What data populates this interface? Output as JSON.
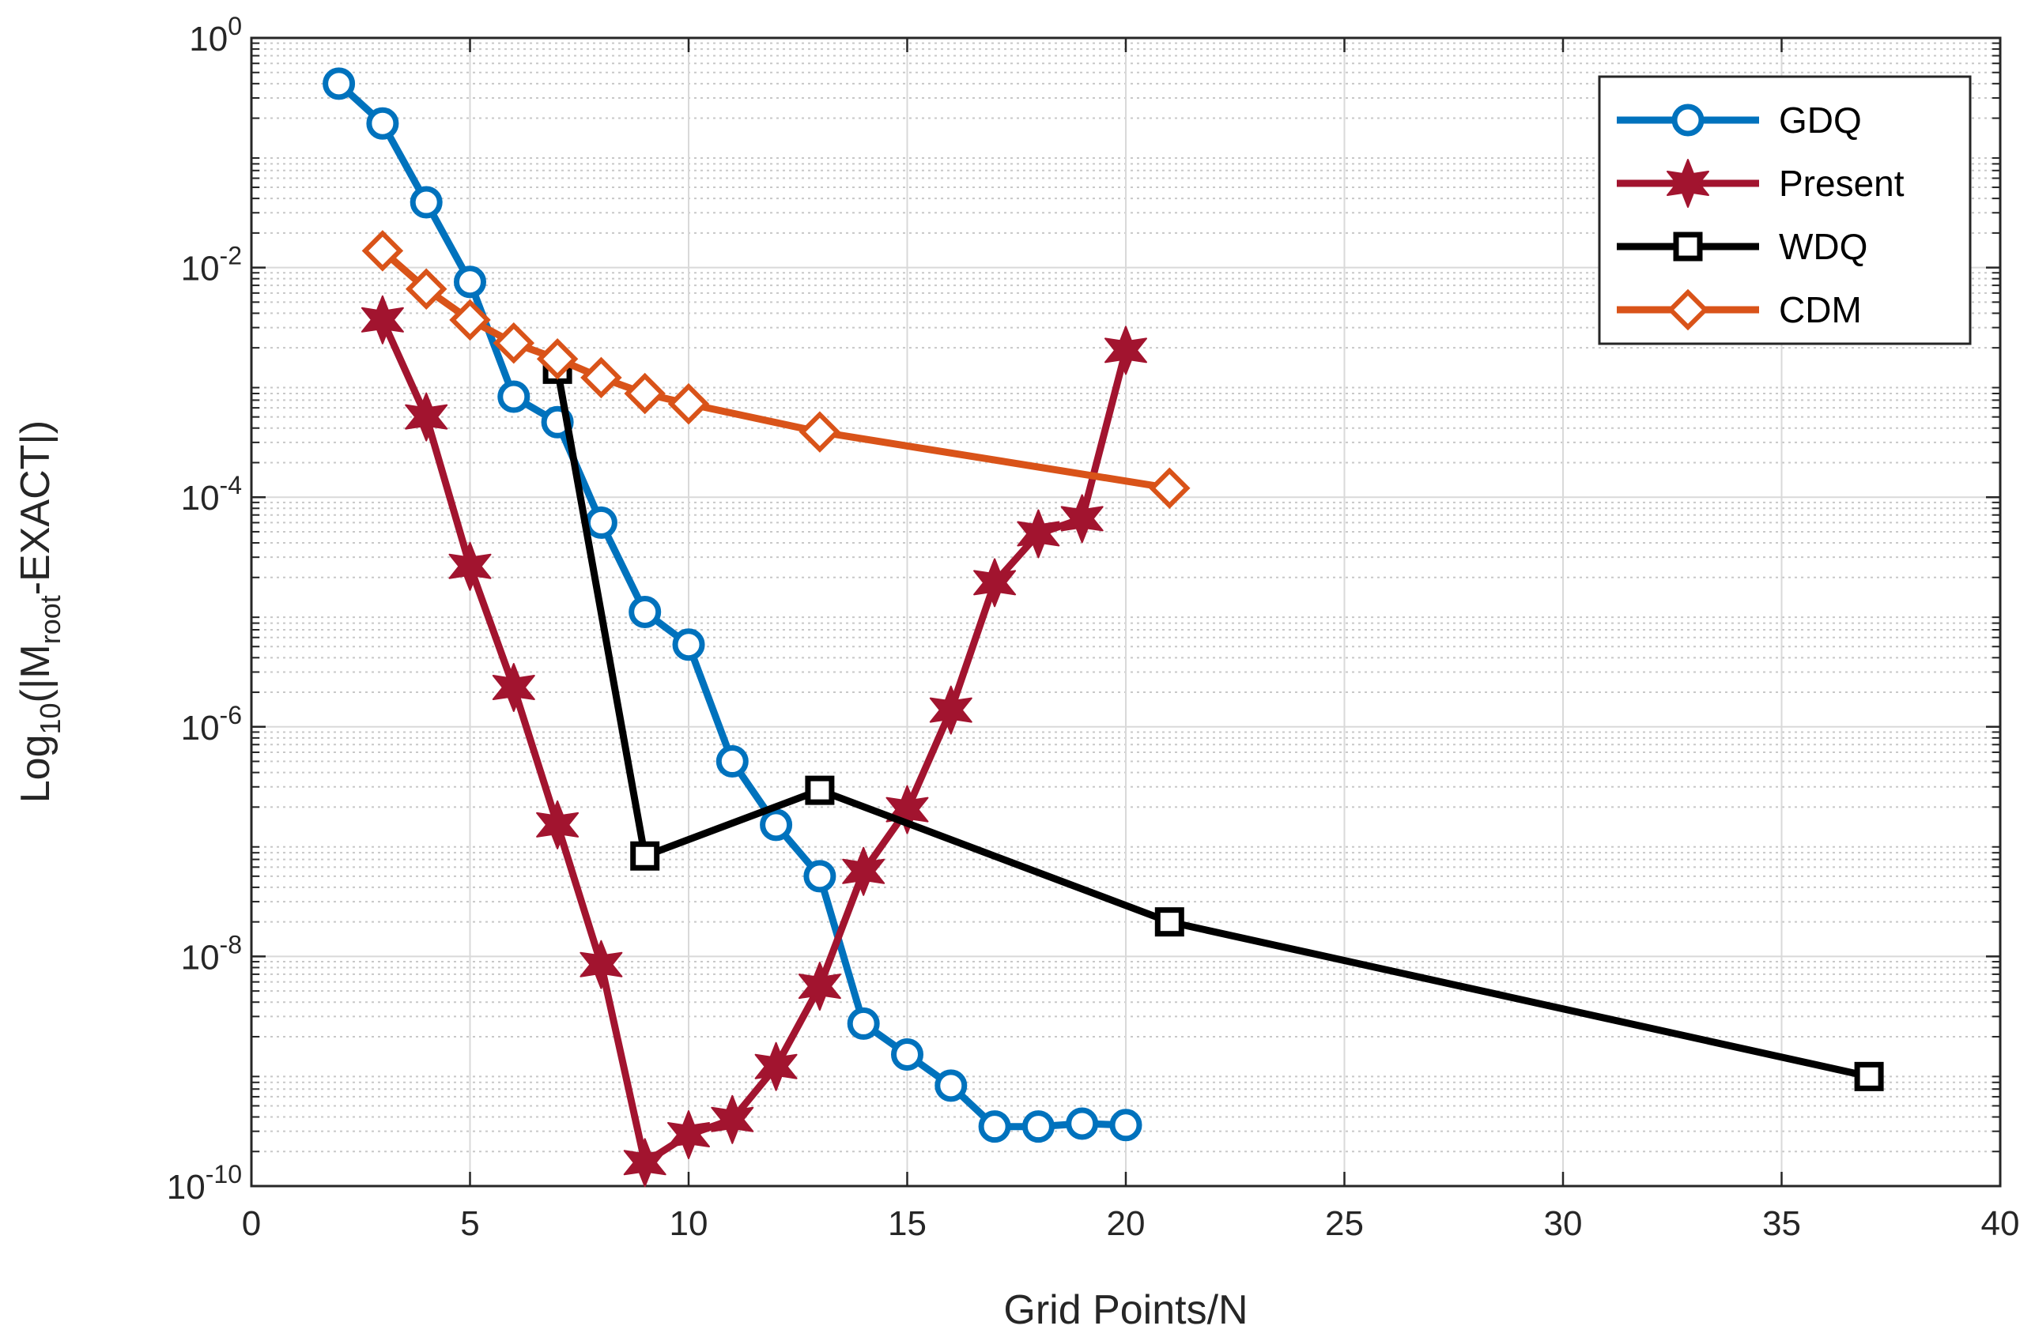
{
  "chart_data": {
    "type": "line",
    "title": "",
    "xlabel": "Grid Points/N",
    "ylabel": {
      "prefix": "Log",
      "base_subscript": "10",
      "open": "(|M",
      "root_subscript": "root",
      "rest": "-EXACT|)"
    },
    "xlim": [
      0,
      40
    ],
    "ylim": [
      1e-10,
      1
    ],
    "yscale": "log",
    "grid": "on",
    "legend_location": "top-right",
    "x_ticks": [
      0,
      5,
      10,
      15,
      20,
      25,
      30,
      35,
      40
    ],
    "x_tick_labels": [
      "0",
      "5",
      "10",
      "15",
      "20",
      "25",
      "30",
      "35",
      "40"
    ],
    "y_ticks": [
      {
        "value": 1,
        "base": "10",
        "exponent": "0"
      },
      {
        "value": 0.01,
        "base": "10",
        "exponent": "-2"
      },
      {
        "value": 0.0001,
        "base": "10",
        "exponent": "-4"
      },
      {
        "value": 1e-06,
        "base": "10",
        "exponent": "-6"
      },
      {
        "value": 1e-08,
        "base": "10",
        "exponent": "-8"
      },
      {
        "value": 1e-10,
        "base": "10",
        "exponent": "-10"
      }
    ],
    "series": [
      {
        "name": "GDQ",
        "color": "#0072BD",
        "marker": "circle",
        "x": [
          2,
          3,
          4,
          5,
          6,
          7,
          8,
          9,
          10,
          11,
          12,
          13,
          14,
          15,
          16,
          17,
          18,
          19,
          20
        ],
        "y": [
          0.4,
          0.18,
          0.037,
          0.0075,
          0.00075,
          0.00045,
          6e-05,
          1e-05,
          5.2e-06,
          5e-07,
          1.4e-07,
          5e-08,
          2.6e-09,
          1.4e-09,
          7.5e-10,
          3.3e-10,
          3.3e-10,
          3.5e-10,
          3.4e-10
        ]
      },
      {
        "name": "Present",
        "color": "#A2142F",
        "marker": "hexagram",
        "x": [
          3,
          4,
          5,
          6,
          7,
          8,
          9,
          10,
          11,
          12,
          13,
          14,
          15,
          16,
          17,
          18,
          19,
          20
        ],
        "y": [
          0.0035,
          0.0005,
          2.5e-05,
          2.2e-06,
          1.4e-07,
          8.5e-09,
          1.6e-10,
          2.8e-10,
          3.8e-10,
          1.1e-09,
          5.5e-09,
          5.5e-08,
          1.9e-07,
          1.4e-06,
          1.8e-05,
          4.8e-05,
          6.5e-05,
          0.0019
        ]
      },
      {
        "name": "WDQ",
        "color": "#000000",
        "marker": "square",
        "x": [
          7,
          9,
          13,
          21,
          37
        ],
        "y": [
          0.0013,
          7.5e-08,
          2.8e-07,
          2e-08,
          9e-10
        ]
      },
      {
        "name": "CDM",
        "color": "#D95319",
        "marker": "diamond",
        "x": [
          3,
          4,
          5,
          6,
          7,
          8,
          9,
          10,
          13,
          21
        ],
        "y": [
          0.014,
          0.0065,
          0.0035,
          0.0022,
          0.0016,
          0.0011,
          0.0008,
          0.00065,
          0.00037,
          0.00012
        ]
      }
    ]
  }
}
